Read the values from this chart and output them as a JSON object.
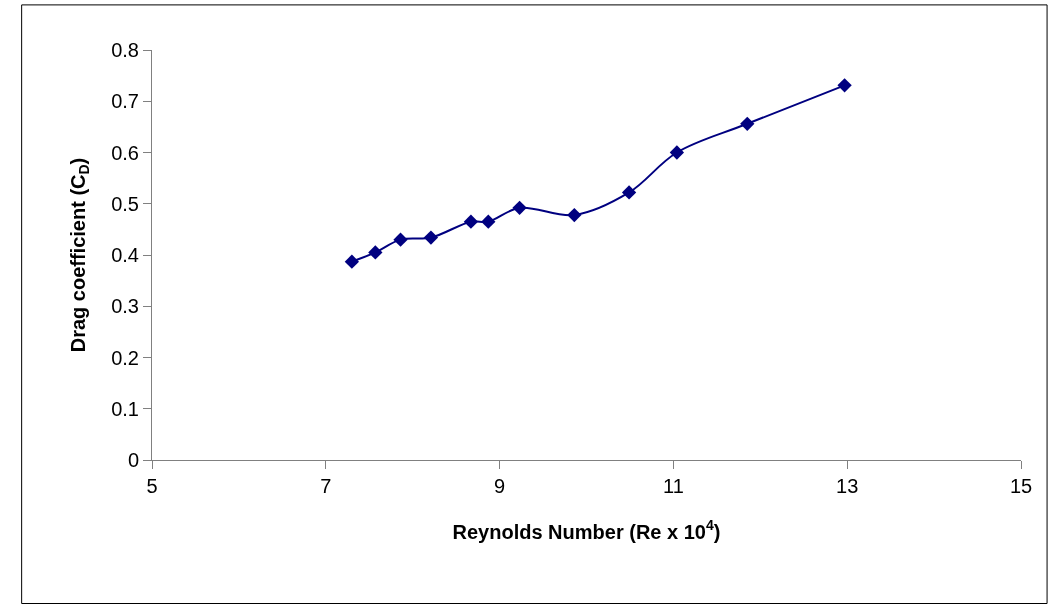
{
  "chart_data": {
    "type": "line",
    "xlabel": "Reynolds Number (Re x 10$^{4}$)",
    "ylabel": "Drag coefficient (C$_{D}$)",
    "x": [
      7.3,
      7.57,
      7.86,
      8.21,
      8.67,
      8.87,
      9.23,
      9.86,
      10.49,
      11.04,
      11.85,
      12.97
    ],
    "series": [
      {
        "color": "#000080",
        "values": [
          0.387,
          0.405,
          0.43,
          0.434,
          0.465,
          0.465,
          0.492,
          0.478,
          0.522,
          0.6,
          0.656,
          0.731
        ]
      }
    ],
    "xlim": [
      5,
      15
    ],
    "xticks": [
      5,
      7,
      9,
      11,
      13,
      15
    ],
    "ylim": [
      0,
      0.8
    ],
    "yticks": [
      0,
      0.1,
      0.2,
      0.3,
      0.4,
      0.5,
      0.6,
      0.7,
      0.8
    ],
    "legend": false,
    "marker": "diamond",
    "line_style": "solid"
  }
}
